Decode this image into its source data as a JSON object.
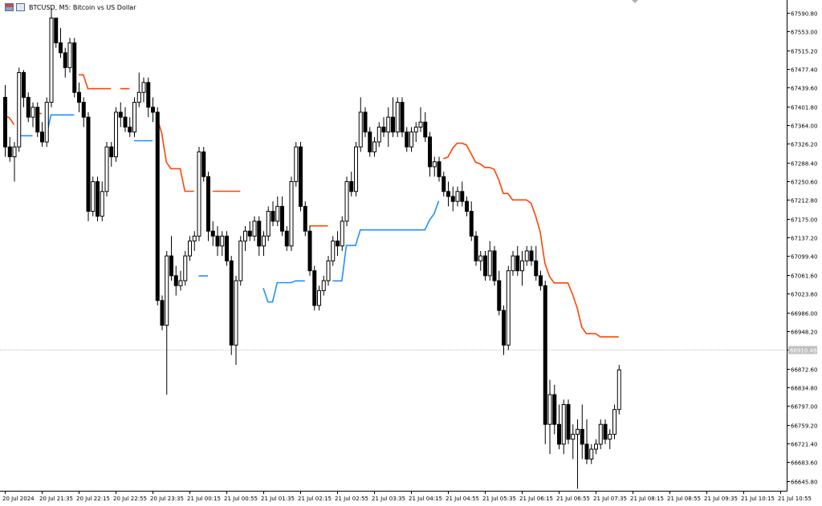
{
  "window": {
    "title": "BTCUSD, M5: Bitcoin vs US Dollar"
  },
  "colors": {
    "up_color": "#ffffff",
    "down_color": "#000000",
    "band_upper": "#ff4500",
    "band_lower": "#1e90ff",
    "price_line": "#c0c0c0"
  },
  "chart_data": {
    "type": "candlestick",
    "symbol": "BTCUSD",
    "timeframe": "M5",
    "title": "BTCUSD, M5: Bitcoin vs US Dollar",
    "ylim": [
      66626,
      67610
    ],
    "current_price": 66910.48,
    "current_price_label": "66910.48",
    "y_ticks": [
      67590.8,
      67553.0,
      67515.2,
      67477.4,
      67439.6,
      67401.8,
      67364.0,
      67326.2,
      67288.4,
      67250.6,
      67212.8,
      67175.0,
      67137.2,
      67099.4,
      67061.6,
      67023.8,
      66986.0,
      66948.2,
      66910.4,
      66872.6,
      66834.8,
      66797.0,
      66759.2,
      66721.4,
      66683.6,
      66645.8
    ],
    "y_tick_labels": [
      "67590.80",
      "67553.00",
      "67515.20",
      "67477.40",
      "67439.60",
      "67401.80",
      "67364.00",
      "67326.20",
      "67288.40",
      "67250.60",
      "67212.80",
      "67175.00",
      "67137.20",
      "67099.40",
      "67061.60",
      "67023.80",
      "66986.00",
      "66948.20",
      "66910.40",
      "66872.60",
      "66834.80",
      "66797.00",
      "66759.20",
      "66721.40",
      "66683.60",
      "66645.80"
    ],
    "x_labels": [
      "20 Jul 2024",
      "20 Jul 21:35",
      "20 Jul 22:15",
      "20 Jul 22:55",
      "20 Jul 23:35",
      "21 Jul 00:15",
      "21 Jul 00:55",
      "21 Jul 01:35",
      "21 Jul 02:15",
      "21 Jul 02:55",
      "21 Jul 03:35",
      "21 Jul 04:15",
      "21 Jul 04:55",
      "21 Jul 05:35",
      "21 Jul 06:15",
      "21 Jul 06:55",
      "21 Jul 07:35",
      "21 Jul 08:15",
      "21 Jul 08:55",
      "21 Jul 09:35",
      "21 Jul 10:15",
      "21 Jul 10:55"
    ],
    "x_label_every": 8,
    "candles": [
      [
        67420,
        67445,
        67300,
        67320
      ],
      [
        67320,
        67340,
        67290,
        67300
      ],
      [
        67300,
        67330,
        67250,
        67320
      ],
      [
        67320,
        67480,
        67310,
        67470
      ],
      [
        67470,
        67475,
        67400,
        67420
      ],
      [
        67420,
        67430,
        67370,
        67380
      ],
      [
        67380,
        67410,
        67360,
        67400
      ],
      [
        67400,
        67410,
        67340,
        67350
      ],
      [
        67350,
        67370,
        67320,
        67330
      ],
      [
        67330,
        67420,
        67320,
        67410
      ],
      [
        67410,
        67600,
        67400,
        67580
      ],
      [
        67580,
        67580,
        67520,
        67530
      ],
      [
        67530,
        67560,
        67500,
        67510
      ],
      [
        67510,
        67520,
        67460,
        67480
      ],
      [
        67480,
        67540,
        67470,
        67530
      ],
      [
        67530,
        67540,
        67420,
        67430
      ],
      [
        67430,
        67450,
        67390,
        67410
      ],
      [
        67410,
        67420,
        67360,
        67380
      ],
      [
        67380,
        67390,
        67170,
        67190
      ],
      [
        67190,
        67260,
        67180,
        67250
      ],
      [
        67250,
        67260,
        67170,
        67180
      ],
      [
        67180,
        67250,
        67170,
        67230
      ],
      [
        67230,
        67330,
        67220,
        67320
      ],
      [
        67320,
        67330,
        67280,
        67300
      ],
      [
        67300,
        67400,
        67290,
        67390
      ],
      [
        67390,
        67410,
        67360,
        67380
      ],
      [
        67380,
        67400,
        67350,
        67360
      ],
      [
        67360,
        67380,
        67340,
        67350
      ],
      [
        67350,
        67420,
        67340,
        67410
      ],
      [
        67410,
        67470,
        67400,
        67430
      ],
      [
        67430,
        67460,
        67410,
        67450
      ],
      [
        67450,
        67460,
        67380,
        67400
      ],
      [
        67400,
        67420,
        67370,
        67390
      ],
      [
        67390,
        67400,
        67000,
        67010
      ],
      [
        67010,
        67020,
        66950,
        66960
      ],
      [
        66960,
        67110,
        66820,
        67100
      ],
      [
        67100,
        67140,
        67050,
        67060
      ],
      [
        67060,
        67080,
        67020,
        67040
      ],
      [
        67040,
        67070,
        67030,
        67050
      ],
      [
        67050,
        67110,
        67040,
        67100
      ],
      [
        67100,
        67140,
        67090,
        67130
      ],
      [
        67130,
        67150,
        67110,
        67140
      ],
      [
        67140,
        67320,
        67130,
        67310
      ],
      [
        67310,
        67320,
        67250,
        67260
      ],
      [
        67260,
        67270,
        67130,
        67150
      ],
      [
        67150,
        67170,
        67120,
        67140
      ],
      [
        67140,
        67160,
        67100,
        67120
      ],
      [
        67120,
        67150,
        67100,
        67140
      ],
      [
        67140,
        67150,
        67080,
        67090
      ],
      [
        67090,
        67100,
        66900,
        66920
      ],
      [
        66920,
        67060,
        66880,
        67050
      ],
      [
        67050,
        67140,
        67040,
        67130
      ],
      [
        67130,
        67160,
        67110,
        67150
      ],
      [
        67150,
        67170,
        67130,
        67140
      ],
      [
        67140,
        67180,
        67130,
        67170
      ],
      [
        67170,
        67180,
        67100,
        67120
      ],
      [
        67120,
        67150,
        67100,
        67140
      ],
      [
        67140,
        67200,
        67130,
        67190
      ],
      [
        67190,
        67210,
        67160,
        67170
      ],
      [
        67170,
        67220,
        67160,
        67200
      ],
      [
        67200,
        67220,
        67140,
        67150
      ],
      [
        67150,
        67160,
        67110,
        67120
      ],
      [
        67120,
        67260,
        67110,
        67250
      ],
      [
        67250,
        67330,
        67240,
        67320
      ],
      [
        67320,
        67330,
        67190,
        67200
      ],
      [
        67200,
        67210,
        67140,
        67150
      ],
      [
        67150,
        67160,
        67060,
        67070
      ],
      [
        67070,
        67080,
        66990,
        67000
      ],
      [
        67000,
        67040,
        66990,
        67030
      ],
      [
        67030,
        67060,
        67020,
        67050
      ],
      [
        67050,
        67100,
        67040,
        67090
      ],
      [
        67090,
        67140,
        67080,
        67130
      ],
      [
        67130,
        67150,
        67100,
        67120
      ],
      [
        67120,
        67180,
        67110,
        67170
      ],
      [
        67170,
        67260,
        67160,
        67250
      ],
      [
        67250,
        67270,
        67220,
        67230
      ],
      [
        67230,
        67330,
        67220,
        67320
      ],
      [
        67320,
        67420,
        67310,
        67390
      ],
      [
        67390,
        67400,
        67340,
        67350
      ],
      [
        67350,
        67360,
        67300,
        67310
      ],
      [
        67310,
        67340,
        67300,
        67330
      ],
      [
        67330,
        67370,
        67320,
        67360
      ],
      [
        67360,
        67380,
        67340,
        67350
      ],
      [
        67350,
        67400,
        67320,
        67380
      ],
      [
        67380,
        67420,
        67340,
        67350
      ],
      [
        67350,
        67420,
        67340,
        67410
      ],
      [
        67410,
        67420,
        67340,
        67350
      ],
      [
        67350,
        67360,
        67310,
        67320
      ],
      [
        67320,
        67360,
        67310,
        67350
      ],
      [
        67350,
        67370,
        67330,
        67360
      ],
      [
        67360,
        67400,
        67350,
        67370
      ],
      [
        67370,
        67390,
        67330,
        67340
      ],
      [
        67340,
        67350,
        67260,
        67280
      ],
      [
        67280,
        67300,
        67260,
        67290
      ],
      [
        67290,
        67300,
        67250,
        67260
      ],
      [
        67260,
        67270,
        67220,
        67230
      ],
      [
        67230,
        67250,
        67200,
        67220
      ],
      [
        67220,
        67240,
        67190,
        67210
      ],
      [
        67210,
        67240,
        67200,
        67230
      ],
      [
        67230,
        67250,
        67200,
        67210
      ],
      [
        67210,
        67220,
        67180,
        67190
      ],
      [
        67190,
        67210,
        67130,
        67140
      ],
      [
        67140,
        67150,
        67080,
        67090
      ],
      [
        67090,
        67110,
        67070,
        67100
      ],
      [
        67100,
        67110,
        67050,
        67060
      ],
      [
        67060,
        67130,
        67050,
        67110
      ],
      [
        67110,
        67120,
        67040,
        67050
      ],
      [
        67050,
        67070,
        66980,
        66990
      ],
      [
        66990,
        67000,
        66900,
        66920
      ],
      [
        66920,
        67080,
        66910,
        67070
      ],
      [
        67070,
        67110,
        67060,
        67100
      ],
      [
        67100,
        67120,
        67060,
        67070
      ],
      [
        67070,
        67110,
        67040,
        67090
      ],
      [
        67090,
        67120,
        67080,
        67110
      ],
      [
        67110,
        67120,
        67080,
        67090
      ],
      [
        67090,
        67120,
        67050,
        67060
      ],
      [
        67060,
        67070,
        67030,
        67040
      ],
      [
        67040,
        67050,
        66720,
        66760
      ],
      [
        66760,
        66850,
        66700,
        66820
      ],
      [
        66820,
        66840,
        66740,
        66760
      ],
      [
        66760,
        66800,
        66710,
        66720
      ],
      [
        66720,
        66810,
        66700,
        66800
      ],
      [
        66800,
        66810,
        66720,
        66730
      ],
      [
        66730,
        66760,
        66690,
        66740
      ],
      [
        66740,
        66770,
        66630,
        66750
      ],
      [
        66750,
        66800,
        66690,
        66720
      ],
      [
        66720,
        66770,
        66680,
        66690
      ],
      [
        66690,
        66720,
        66680,
        66710
      ],
      [
        66710,
        66730,
        66700,
        66720
      ],
      [
        66720,
        66770,
        66710,
        66760
      ],
      [
        66760,
        66770,
        66720,
        66730
      ],
      [
        66730,
        66750,
        66710,
        66740
      ],
      [
        66740,
        66800,
        66730,
        66790
      ],
      [
        66790,
        66880,
        66780,
        66870
      ]
    ]
  }
}
